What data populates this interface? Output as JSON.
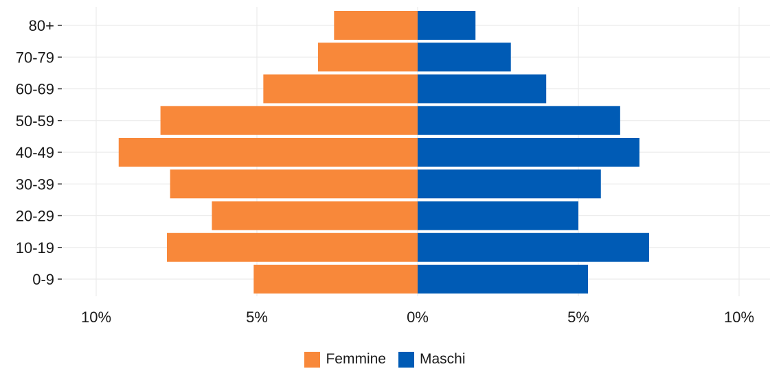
{
  "chart_data": {
    "type": "bar",
    "orientation": "horizontal",
    "layout": "population-pyramid",
    "categories": [
      "0-9",
      "10-19",
      "20-29",
      "30-39",
      "40-49",
      "50-59",
      "60-69",
      "70-79",
      "80+"
    ],
    "series": [
      {
        "name": "Femmine",
        "color": "#F8883A",
        "side": "left",
        "values": [
          5.1,
          7.8,
          6.4,
          7.7,
          9.3,
          8.0,
          4.8,
          3.1,
          2.6
        ]
      },
      {
        "name": "Maschi",
        "color": "#005BB5",
        "side": "right",
        "values": [
          5.3,
          7.2,
          5.0,
          5.7,
          6.9,
          6.3,
          4.0,
          2.9,
          1.8
        ]
      }
    ],
    "xticks": [
      {
        "value": -10,
        "label": "10%"
      },
      {
        "value": -5,
        "label": "5%"
      },
      {
        "value": 0,
        "label": "0%"
      },
      {
        "value": 5,
        "label": "5%"
      },
      {
        "value": 10,
        "label": "10%"
      }
    ],
    "xlim": [
      -10,
      10
    ],
    "grid": true,
    "legend_position": "bottom",
    "title": "",
    "xlabel": "",
    "ylabel": ""
  }
}
